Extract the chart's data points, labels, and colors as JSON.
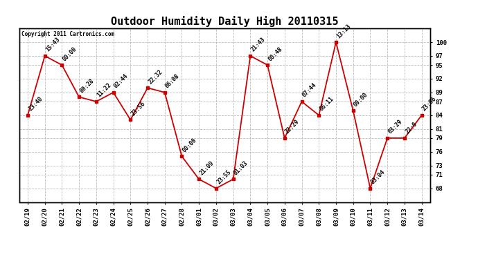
{
  "title": "Outdoor Humidity Daily High 20110315",
  "copyright": "Copyright 2011 Cartronics.com",
  "x_labels": [
    "02/19",
    "02/20",
    "02/21",
    "02/22",
    "02/23",
    "02/24",
    "02/25",
    "02/26",
    "02/27",
    "02/28",
    "03/01",
    "03/02",
    "03/03",
    "03/04",
    "03/05",
    "03/06",
    "03/07",
    "03/08",
    "03/09",
    "03/10",
    "03/11",
    "03/12",
    "03/13",
    "03/14"
  ],
  "y_values": [
    84,
    97,
    95,
    88,
    87,
    89,
    83,
    90,
    89,
    75,
    70,
    68,
    70,
    97,
    95,
    79,
    87,
    84,
    100,
    85,
    68,
    79,
    79,
    84
  ],
  "time_labels": [
    "23:40",
    "15:43",
    "00:00",
    "00:28",
    "11:22",
    "02:44",
    "23:56",
    "22:32",
    "06:08",
    "00:00",
    "21:09",
    "23:55",
    "01:03",
    "21:43",
    "00:48",
    "22:29",
    "07:44",
    "06:11",
    "13:13",
    "00:00",
    "03:04",
    "03:29",
    "22:0",
    "23:06"
  ],
  "line_color": "#cc0000",
  "marker_color": "#cc0000",
  "bg_color": "#ffffff",
  "grid_color": "#bbbbbb",
  "yticks": [
    68,
    71,
    73,
    76,
    79,
    81,
    84,
    87,
    89,
    92,
    95,
    97,
    100
  ],
  "ylim": [
    65,
    103
  ],
  "title_fontsize": 11,
  "label_fontsize": 6.5,
  "time_label_fontsize": 6
}
